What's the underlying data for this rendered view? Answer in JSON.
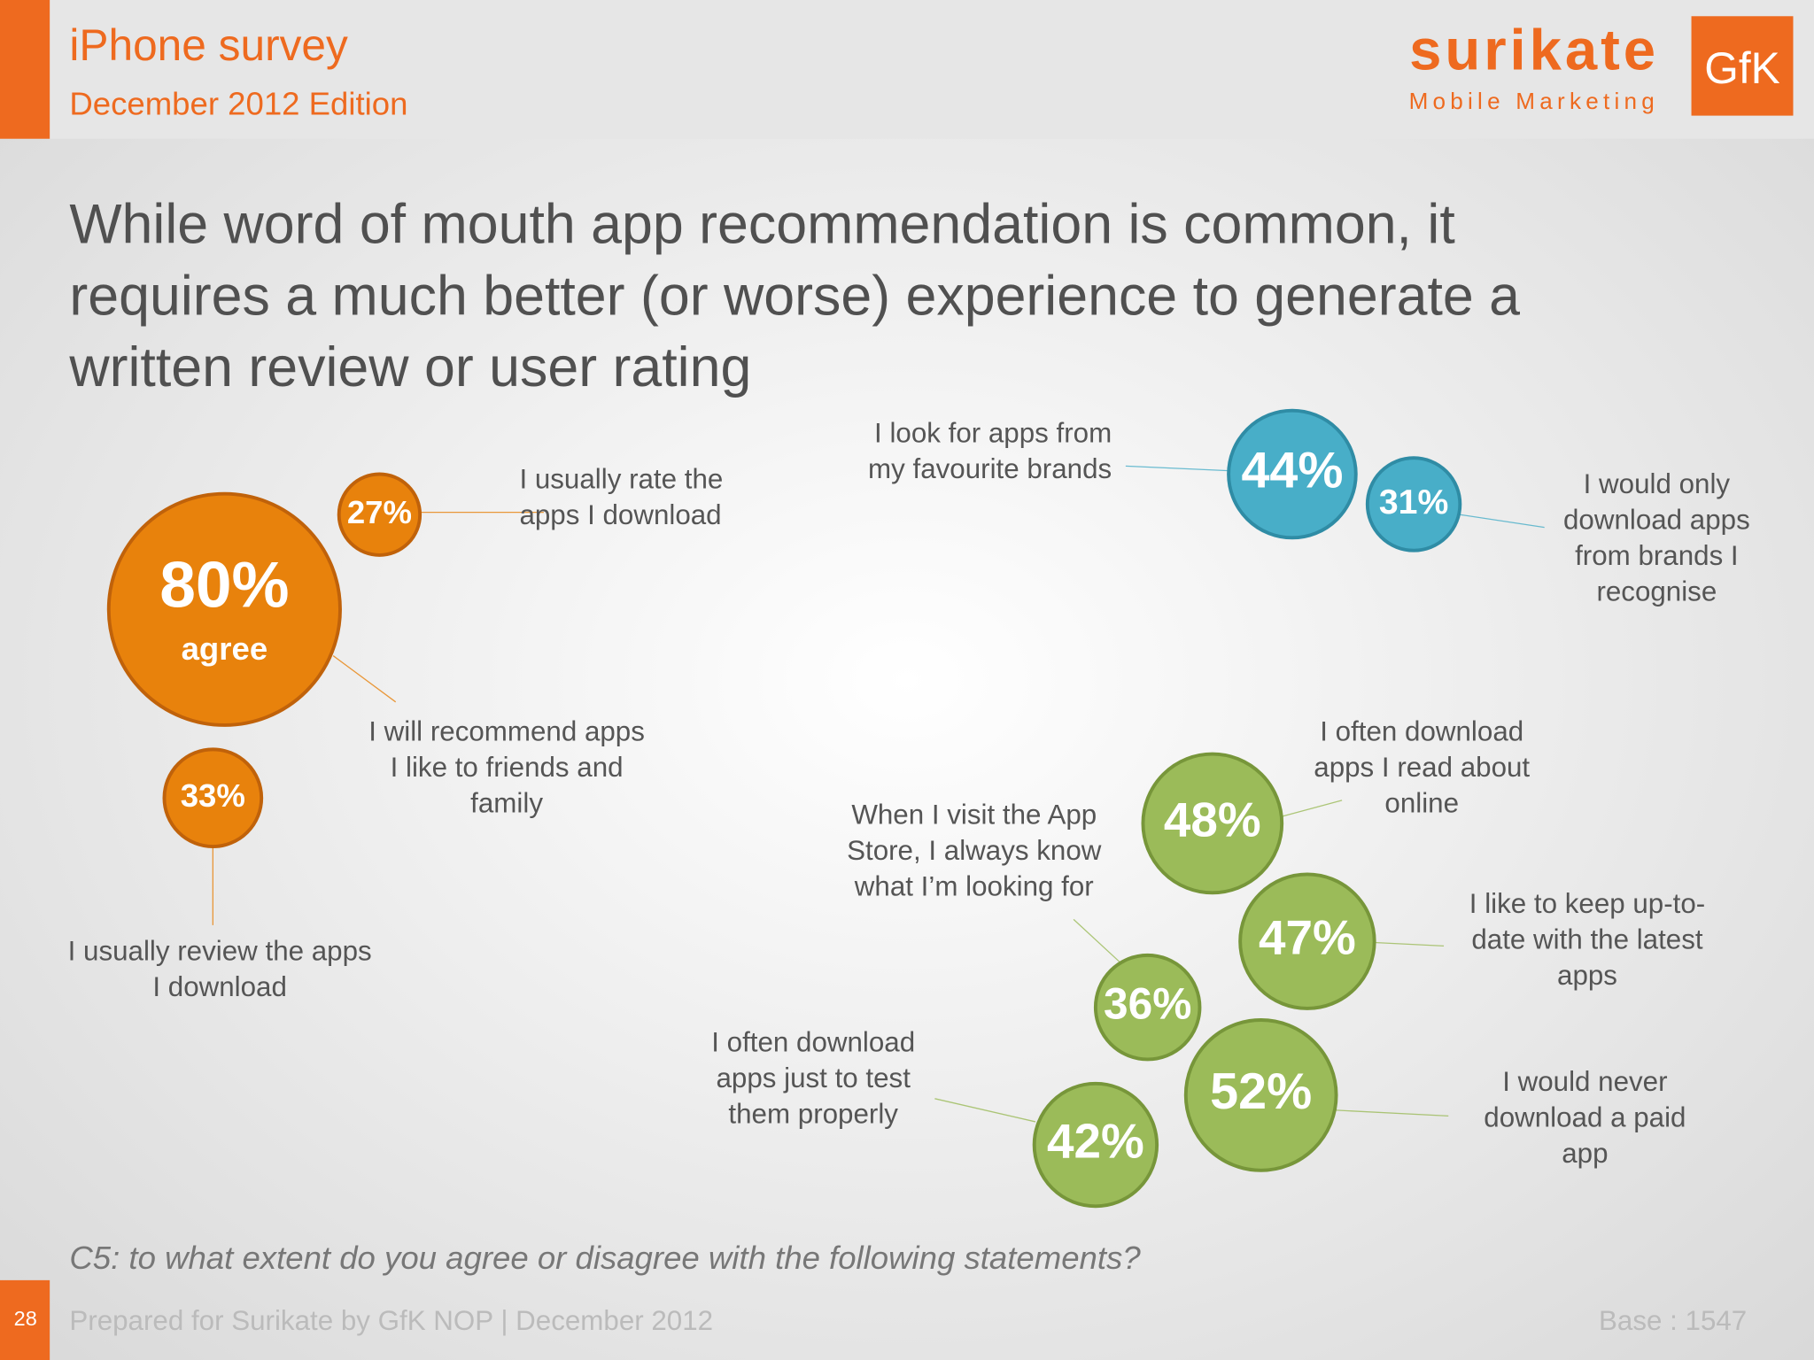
{
  "header": {
    "title": "iPhone survey",
    "subtitle": "December 2012 Edition",
    "brand": "surikate",
    "brand_tagline": "Mobile Marketing",
    "partner_logo": "GfK"
  },
  "headline": [
    "While word of mouth app recommendation is common, it",
    "requires a much better (or worse) experience to generate a",
    "written review or user rating"
  ],
  "bubbles": [
    {
      "value": "80%",
      "caption": "agree",
      "statement": [
        "I will recommend apps",
        "I like to friends and",
        "family"
      ]
    },
    {
      "value": "27%",
      "statement": [
        "I usually rate the",
        "apps I download"
      ]
    },
    {
      "value": "33%",
      "statement": [
        "I usually review the apps",
        "I download"
      ]
    },
    {
      "value": "44%",
      "statement": [
        "I look for apps from",
        "my favourite brands"
      ]
    },
    {
      "value": "31%",
      "statement": [
        "I would only",
        "download apps",
        "from brands I",
        "recognise"
      ]
    },
    {
      "value": "48%",
      "statement": [
        "I often download",
        "apps I read about",
        "online"
      ]
    },
    {
      "value": "47%",
      "statement": [
        "I like to keep up-to-",
        "date with the latest",
        "apps"
      ]
    },
    {
      "value": "36%",
      "statement": [
        "When I visit the App",
        "Store, I always know",
        "what I’m looking for"
      ]
    },
    {
      "value": "52%",
      "statement": [
        "I would never",
        "download a paid",
        "app"
      ]
    },
    {
      "value": "42%",
      "statement": [
        "I often download",
        "apps just to test",
        "them properly"
      ]
    }
  ],
  "question": "C5: to what extent do you agree or disagree with the following statements?",
  "footer": {
    "page_number": "28",
    "prepared": "Prepared for Surikate by GfK NOP | December 2012",
    "base": "Base : 1547"
  }
}
